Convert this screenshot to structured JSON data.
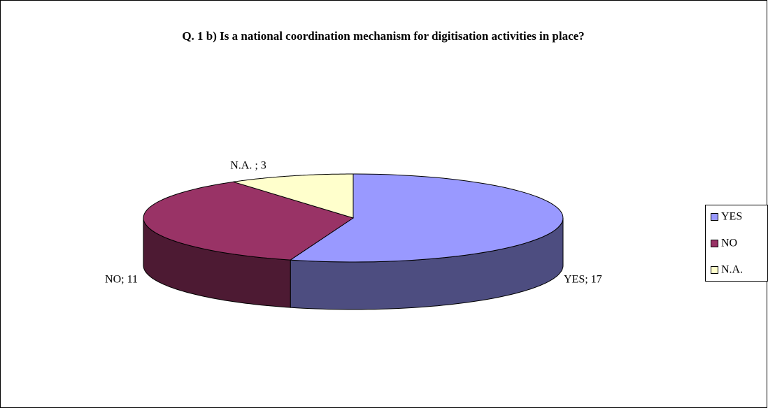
{
  "chart_data": {
    "type": "pie",
    "title": "Q. 1 b) Is a national coordination mechanism for digitisation activities in place?",
    "categories": [
      "YES",
      "NO",
      "N.A."
    ],
    "values": [
      17,
      11,
      3
    ],
    "value_labels": [
      "YES; 17",
      "NO; 11",
      "N.A. ; 3"
    ],
    "colors": [
      "#9999ff",
      "#993366",
      "#ffffcc"
    ],
    "legend": "right"
  }
}
